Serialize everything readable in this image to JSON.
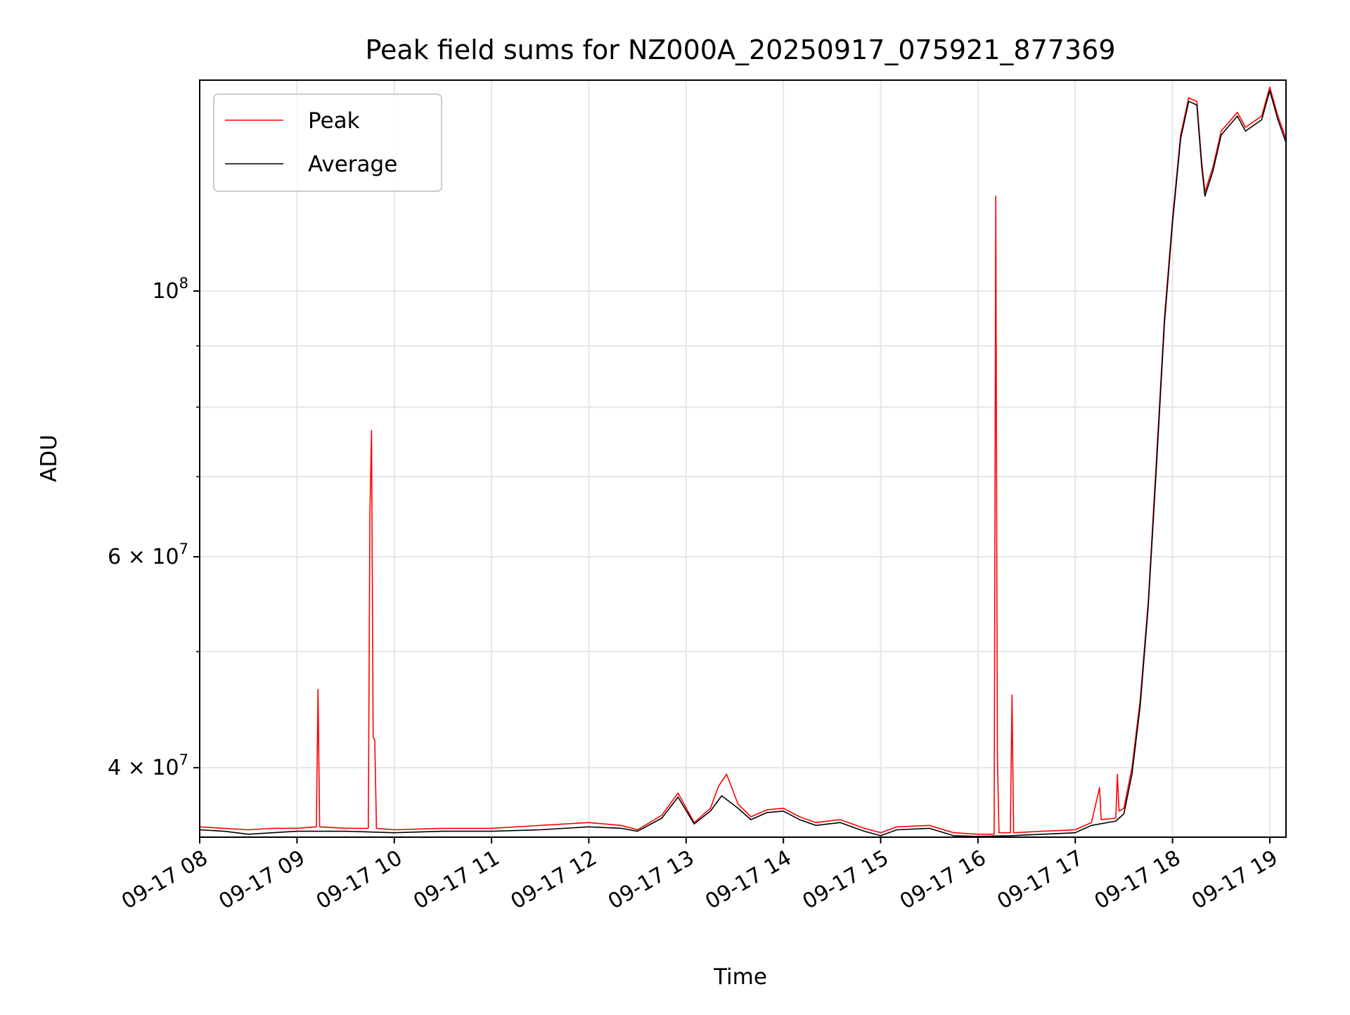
{
  "chart_data": {
    "type": "line",
    "title": "Peak field sums for NZ000A_20250917_075921_877369",
    "xlabel": "Time",
    "ylabel": "ADU",
    "y_scale": "log",
    "ylim": [
      35000000,
      150000000
    ],
    "xlim": [
      "2025-09-17 08:00",
      "2025-09-17 19:10"
    ],
    "grid": true,
    "legend": {
      "position": "upper-left",
      "entries": [
        "Peak",
        "Average"
      ]
    },
    "x_ticks": [
      {
        "t": "2025-09-17 08:00",
        "label": "09-17 08"
      },
      {
        "t": "2025-09-17 09:00",
        "label": "09-17 09"
      },
      {
        "t": "2025-09-17 10:00",
        "label": "09-17 10"
      },
      {
        "t": "2025-09-17 11:00",
        "label": "09-17 11"
      },
      {
        "t": "2025-09-17 12:00",
        "label": "09-17 12"
      },
      {
        "t": "2025-09-17 13:00",
        "label": "09-17 13"
      },
      {
        "t": "2025-09-17 14:00",
        "label": "09-17 14"
      },
      {
        "t": "2025-09-17 15:00",
        "label": "09-17 15"
      },
      {
        "t": "2025-09-17 16:00",
        "label": "09-17 16"
      },
      {
        "t": "2025-09-17 17:00",
        "label": "09-17 17"
      },
      {
        "t": "2025-09-17 18:00",
        "label": "09-17 18"
      },
      {
        "t": "2025-09-17 19:00",
        "label": "09-17 19"
      }
    ],
    "y_ticks": [
      {
        "value": 40000000,
        "label_base": "4 × 10",
        "label_exp": "7"
      },
      {
        "value": 60000000,
        "label_base": "6 × 10",
        "label_exp": "7"
      },
      {
        "value": 100000000,
        "label_base": "10",
        "label_exp": "8"
      }
    ],
    "y_minor_ticks": [
      50000000,
      70000000,
      80000000,
      90000000
    ],
    "series": [
      {
        "name": "Peak",
        "color": "#ff0000",
        "points": [
          [
            "2025-09-17 08:00",
            35700000
          ],
          [
            "2025-09-17 08:15",
            35600000
          ],
          [
            "2025-09-17 08:30",
            35500000
          ],
          [
            "2025-09-17 08:45",
            35600000
          ],
          [
            "2025-09-17 09:00",
            35600000
          ],
          [
            "2025-09-17 09:12",
            35700000
          ],
          [
            "2025-09-17 09:13",
            46500000
          ],
          [
            "2025-09-17 09:14",
            35700000
          ],
          [
            "2025-09-17 09:30",
            35600000
          ],
          [
            "2025-09-17 09:44",
            35600000
          ],
          [
            "2025-09-17 09:45",
            65200000
          ],
          [
            "2025-09-17 09:46",
            76500000
          ],
          [
            "2025-09-17 09:47",
            42400000
          ],
          [
            "2025-09-17 09:48",
            42200000
          ],
          [
            "2025-09-17 09:49",
            35600000
          ],
          [
            "2025-09-17 10:00",
            35500000
          ],
          [
            "2025-09-17 10:30",
            35600000
          ],
          [
            "2025-09-17 11:00",
            35600000
          ],
          [
            "2025-09-17 11:30",
            35800000
          ],
          [
            "2025-09-17 12:00",
            36000000
          ],
          [
            "2025-09-17 12:20",
            35800000
          ],
          [
            "2025-09-17 12:30",
            35500000
          ],
          [
            "2025-09-17 12:45",
            36500000
          ],
          [
            "2025-09-17 12:55",
            38100000
          ],
          [
            "2025-09-17 13:05",
            36000000
          ],
          [
            "2025-09-17 13:15",
            37000000
          ],
          [
            "2025-09-17 13:20",
            38600000
          ],
          [
            "2025-09-17 13:25",
            39500000
          ],
          [
            "2025-09-17 13:32",
            37300000
          ],
          [
            "2025-09-17 13:40",
            36400000
          ],
          [
            "2025-09-17 13:50",
            36900000
          ],
          [
            "2025-09-17 14:00",
            37000000
          ],
          [
            "2025-09-17 14:10",
            36400000
          ],
          [
            "2025-09-17 14:20",
            36000000
          ],
          [
            "2025-09-17 14:35",
            36200000
          ],
          [
            "2025-09-17 14:50",
            35600000
          ],
          [
            "2025-09-17 15:00",
            35300000
          ],
          [
            "2025-09-17 15:10",
            35700000
          ],
          [
            "2025-09-17 15:30",
            35800000
          ],
          [
            "2025-09-17 15:45",
            35300000
          ],
          [
            "2025-09-17 16:00",
            35200000
          ],
          [
            "2025-09-17 16:10",
            35200000
          ],
          [
            "2025-09-17 16:11",
            120000000
          ],
          [
            "2025-09-17 16:12",
            41000000
          ],
          [
            "2025-09-17 16:13",
            35300000
          ],
          [
            "2025-09-17 16:20",
            35300000
          ],
          [
            "2025-09-17 16:21",
            46000000
          ],
          [
            "2025-09-17 16:22",
            35300000
          ],
          [
            "2025-09-17 16:40",
            35400000
          ],
          [
            "2025-09-17 17:00",
            35500000
          ],
          [
            "2025-09-17 17:10",
            36000000
          ],
          [
            "2025-09-17 17:15",
            38500000
          ],
          [
            "2025-09-17 17:16",
            36200000
          ],
          [
            "2025-09-17 17:25",
            36300000
          ],
          [
            "2025-09-17 17:26",
            39500000
          ],
          [
            "2025-09-17 17:27",
            36800000
          ],
          [
            "2025-09-17 17:30",
            37000000
          ],
          [
            "2025-09-17 17:35",
            40000000
          ],
          [
            "2025-09-17 17:40",
            45500000
          ],
          [
            "2025-09-17 17:45",
            55000000
          ],
          [
            "2025-09-17 17:50",
            72000000
          ],
          [
            "2025-09-17 17:55",
            95000000
          ],
          [
            "2025-09-17 18:00",
            115000000
          ],
          [
            "2025-09-17 18:05",
            135000000
          ],
          [
            "2025-09-17 18:10",
            145000000
          ],
          [
            "2025-09-17 18:15",
            144000000
          ],
          [
            "2025-09-17 18:18",
            128000000
          ],
          [
            "2025-09-17 18:20",
            121000000
          ],
          [
            "2025-09-17 18:25",
            127000000
          ],
          [
            "2025-09-17 18:30",
            136000000
          ],
          [
            "2025-09-17 18:40",
            141000000
          ],
          [
            "2025-09-17 18:45",
            137000000
          ],
          [
            "2025-09-17 18:55",
            140000000
          ],
          [
            "2025-09-17 19:00",
            148000000
          ],
          [
            "2025-09-17 19:05",
            140000000
          ],
          [
            "2025-09-17 19:10",
            134000000
          ]
        ]
      },
      {
        "name": "Average",
        "color": "#000000",
        "points": [
          [
            "2025-09-17 08:00",
            35500000
          ],
          [
            "2025-09-17 08:15",
            35400000
          ],
          [
            "2025-09-17 08:30",
            35200000
          ],
          [
            "2025-09-17 08:45",
            35300000
          ],
          [
            "2025-09-17 09:00",
            35400000
          ],
          [
            "2025-09-17 09:30",
            35400000
          ],
          [
            "2025-09-17 10:00",
            35300000
          ],
          [
            "2025-09-17 10:30",
            35400000
          ],
          [
            "2025-09-17 11:00",
            35400000
          ],
          [
            "2025-09-17 11:30",
            35500000
          ],
          [
            "2025-09-17 12:00",
            35700000
          ],
          [
            "2025-09-17 12:20",
            35600000
          ],
          [
            "2025-09-17 12:30",
            35400000
          ],
          [
            "2025-09-17 12:45",
            36300000
          ],
          [
            "2025-09-17 12:55",
            37800000
          ],
          [
            "2025-09-17 13:05",
            35900000
          ],
          [
            "2025-09-17 13:15",
            36800000
          ],
          [
            "2025-09-17 13:22",
            37900000
          ],
          [
            "2025-09-17 13:32",
            37000000
          ],
          [
            "2025-09-17 13:40",
            36200000
          ],
          [
            "2025-09-17 13:50",
            36700000
          ],
          [
            "2025-09-17 14:00",
            36800000
          ],
          [
            "2025-09-17 14:10",
            36200000
          ],
          [
            "2025-09-17 14:20",
            35800000
          ],
          [
            "2025-09-17 14:35",
            36000000
          ],
          [
            "2025-09-17 14:50",
            35400000
          ],
          [
            "2025-09-17 15:00",
            35100000
          ],
          [
            "2025-09-17 15:10",
            35500000
          ],
          [
            "2025-09-17 15:30",
            35600000
          ],
          [
            "2025-09-17 15:45",
            35100000
          ],
          [
            "2025-09-17 16:00",
            35050000
          ],
          [
            "2025-09-17 16:20",
            35100000
          ],
          [
            "2025-09-17 16:40",
            35200000
          ],
          [
            "2025-09-17 17:00",
            35300000
          ],
          [
            "2025-09-17 17:10",
            35800000
          ],
          [
            "2025-09-17 17:25",
            36100000
          ],
          [
            "2025-09-17 17:30",
            36600000
          ],
          [
            "2025-09-17 17:35",
            39500000
          ],
          [
            "2025-09-17 17:40",
            45000000
          ],
          [
            "2025-09-17 17:45",
            54500000
          ],
          [
            "2025-09-17 17:50",
            71000000
          ],
          [
            "2025-09-17 17:55",
            94000000
          ],
          [
            "2025-09-17 18:00",
            114000000
          ],
          [
            "2025-09-17 18:05",
            134000000
          ],
          [
            "2025-09-17 18:10",
            144000000
          ],
          [
            "2025-09-17 18:15",
            143000000
          ],
          [
            "2025-09-17 18:18",
            127000000
          ],
          [
            "2025-09-17 18:20",
            120000000
          ],
          [
            "2025-09-17 18:25",
            126000000
          ],
          [
            "2025-09-17 18:30",
            135000000
          ],
          [
            "2025-09-17 18:40",
            140000000
          ],
          [
            "2025-09-17 18:45",
            136000000
          ],
          [
            "2025-09-17 18:55",
            139000000
          ],
          [
            "2025-09-17 19:00",
            147000000
          ],
          [
            "2025-09-17 19:05",
            139000000
          ],
          [
            "2025-09-17 19:10",
            133000000
          ]
        ]
      }
    ]
  }
}
